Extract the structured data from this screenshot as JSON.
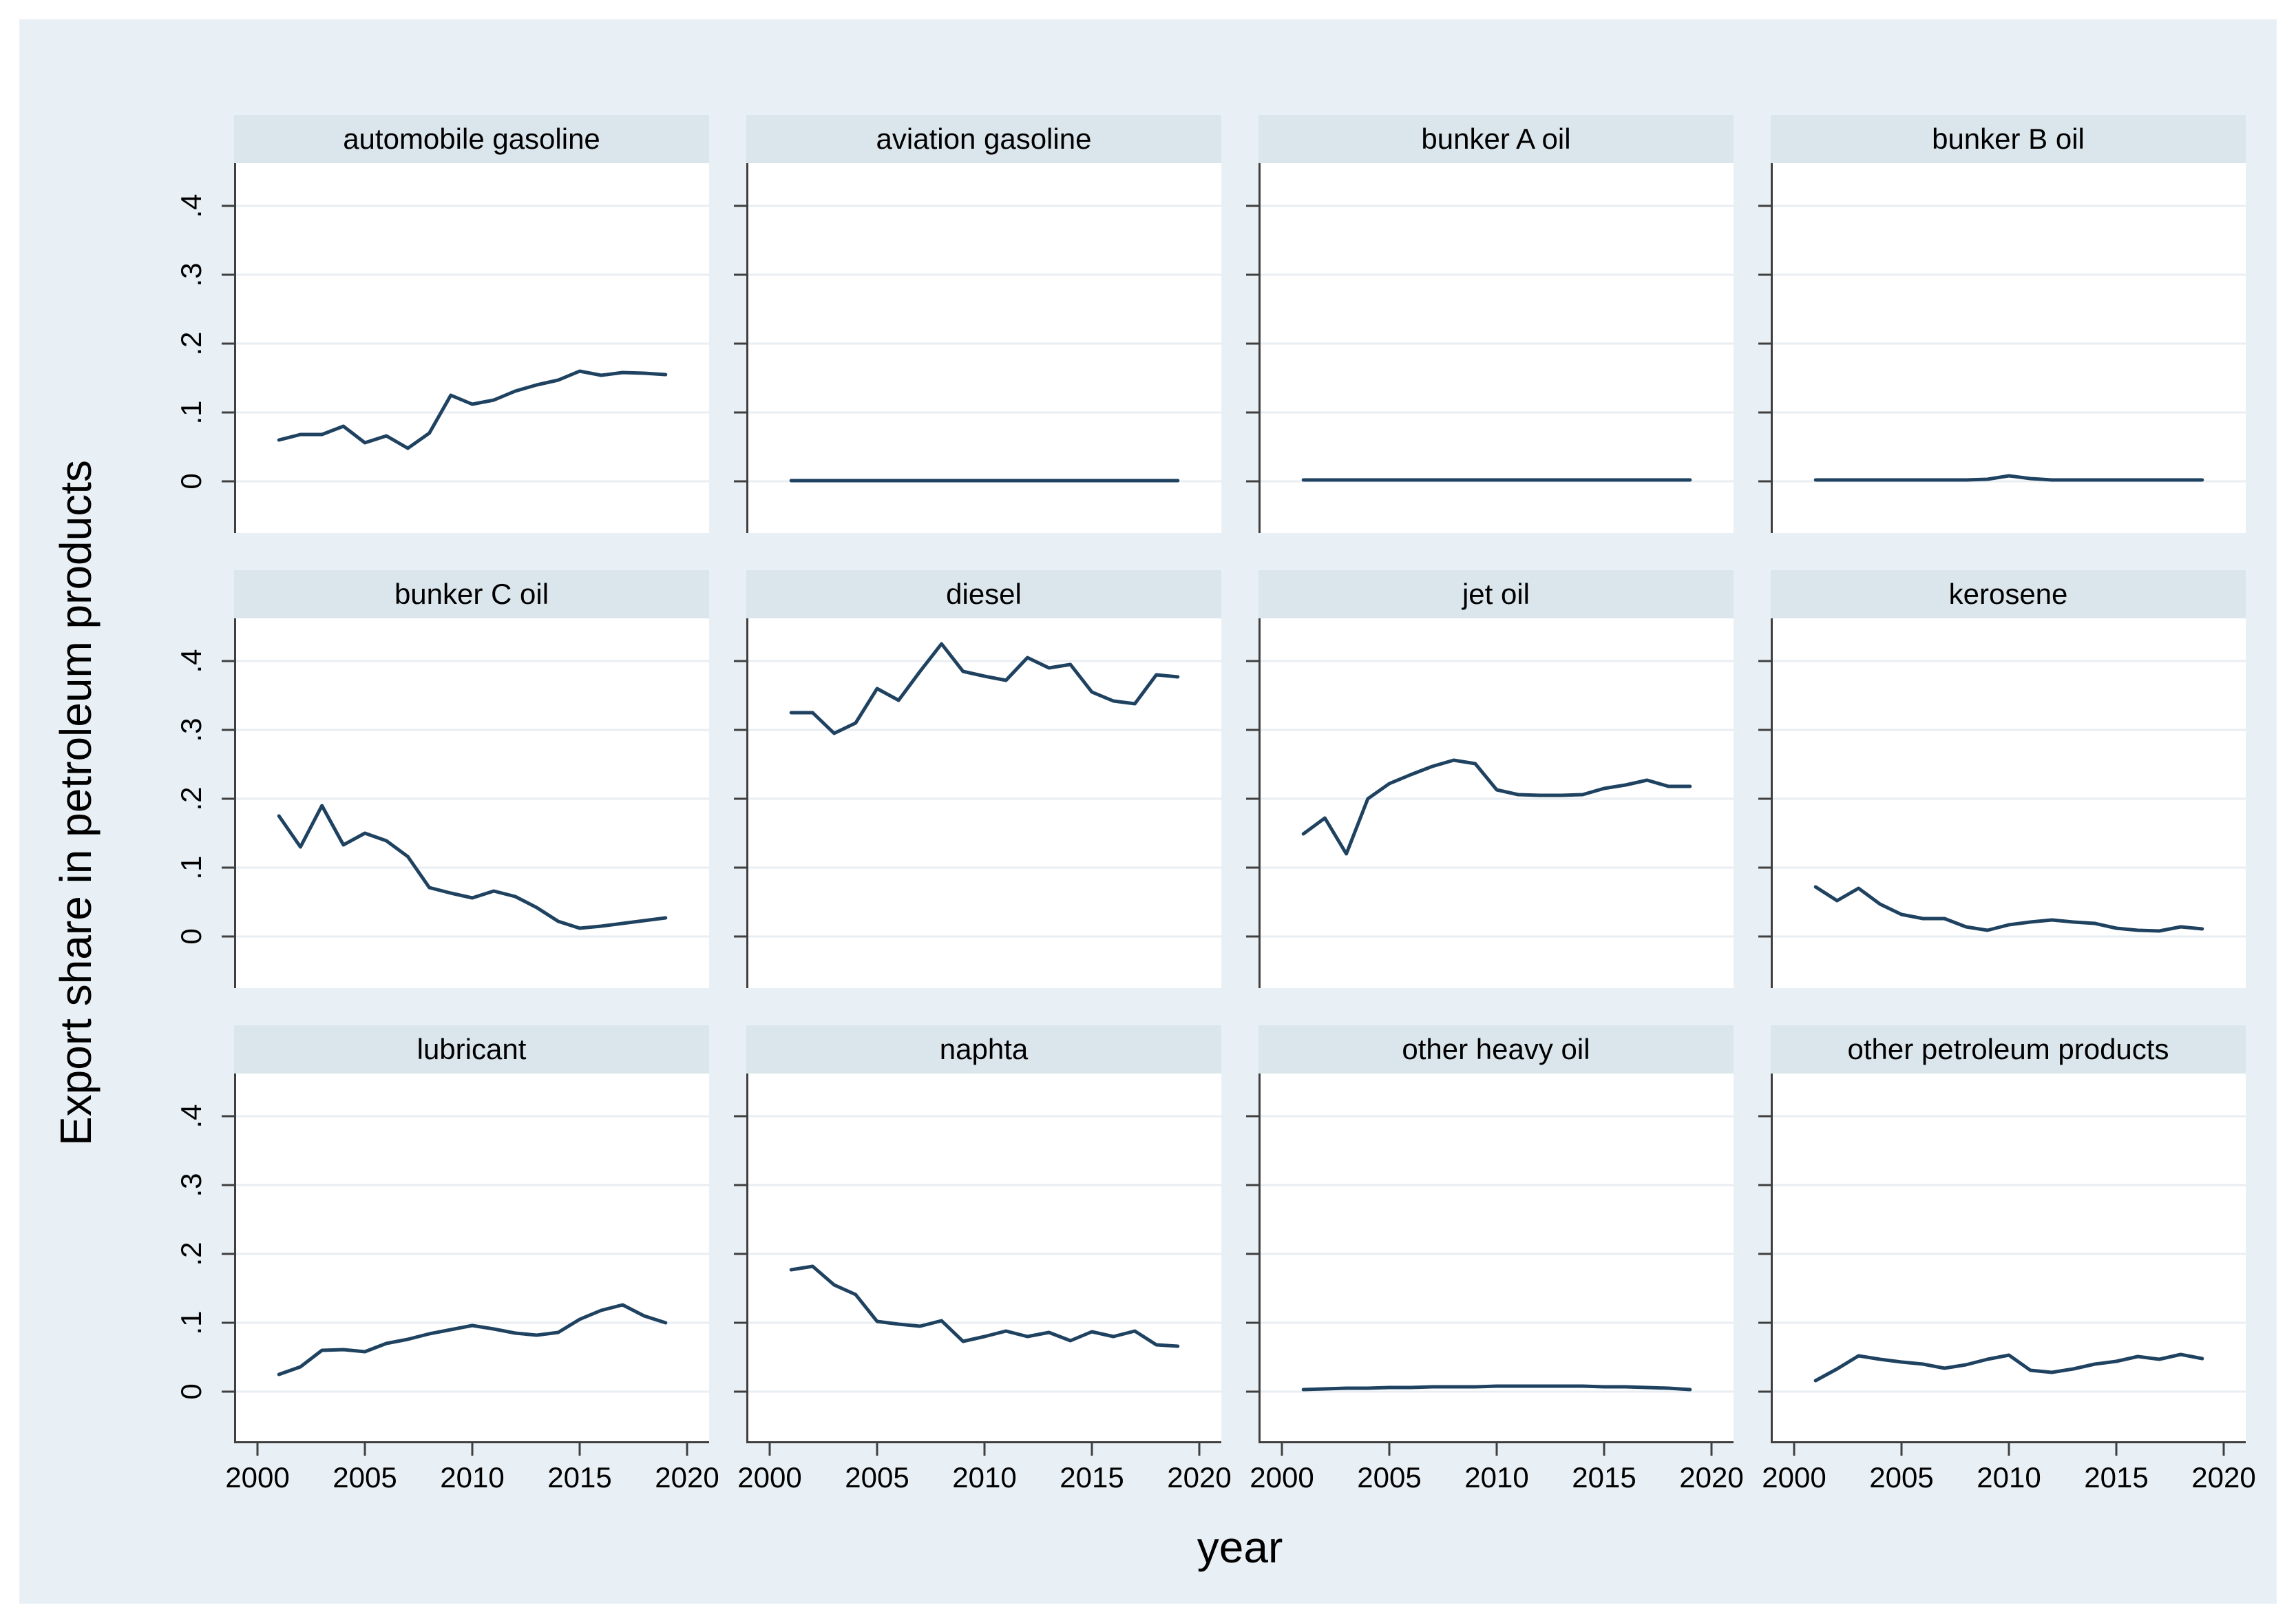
{
  "figure": {
    "ylabel": "Export share in petroleum products",
    "xlabel": "year",
    "colors": {
      "page_border": "#ffffff",
      "canvas": "#e9f0f5",
      "titlebar": "#dbe5ec",
      "plot_background": "#ffffff",
      "gridline": "#e9eef3",
      "line": "#1f4260",
      "spine": "#3f3f3f",
      "text": "#000000"
    }
  },
  "chart_data": {
    "type": "line",
    "layout": "small-multiples 3 rows x 4 cols",
    "title": "",
    "xlabel": "year",
    "ylabel": "Export share in petroleum products",
    "grid": true,
    "legend": "none",
    "xlim": [
      2000,
      2020
    ],
    "ylim": [
      -0.033,
      0.47
    ],
    "x_ticks": [
      2000,
      2005,
      2010,
      2015,
      2020
    ],
    "y_tick_values": [
      0,
      0.1,
      0.2,
      0.3,
      0.4
    ],
    "y_tick_labels": [
      "0",
      ".1",
      ".2",
      ".3",
      ".4"
    ],
    "x": [
      2001,
      2002,
      2003,
      2004,
      2005,
      2006,
      2007,
      2008,
      2009,
      2010,
      2011,
      2012,
      2013,
      2014,
      2015,
      2016,
      2017,
      2018,
      2019
    ],
    "panels": [
      {
        "title": "automobile gasoline",
        "values": [
          0.06,
          0.068,
          0.068,
          0.08,
          0.056,
          0.066,
          0.048,
          0.07,
          0.125,
          0.112,
          0.118,
          0.131,
          0.14,
          0.147,
          0.16,
          0.154,
          0.158,
          0.157,
          0.155
        ]
      },
      {
        "title": "aviation gasoline",
        "values": [
          0.001,
          0.001,
          0.001,
          0.001,
          0.001,
          0.001,
          0.001,
          0.001,
          0.001,
          0.001,
          0.001,
          0.001,
          0.001,
          0.001,
          0.001,
          0.001,
          0.001,
          0.001,
          0.001
        ]
      },
      {
        "title": "bunker A oil",
        "values": [
          0.002,
          0.002,
          0.002,
          0.002,
          0.002,
          0.002,
          0.002,
          0.002,
          0.002,
          0.002,
          0.002,
          0.002,
          0.002,
          0.002,
          0.002,
          0.002,
          0.002,
          0.002,
          0.002
        ]
      },
      {
        "title": "bunker B oil",
        "values": [
          0.002,
          0.002,
          0.002,
          0.002,
          0.002,
          0.002,
          0.002,
          0.002,
          0.003,
          0.008,
          0.004,
          0.002,
          0.002,
          0.002,
          0.002,
          0.002,
          0.002,
          0.002,
          0.002
        ]
      },
      {
        "title": "bunker C oil",
        "values": [
          0.175,
          0.13,
          0.19,
          0.133,
          0.15,
          0.139,
          0.116,
          0.071,
          0.063,
          0.056,
          0.066,
          0.058,
          0.042,
          0.022,
          0.012,
          0.015,
          0.019,
          0.023,
          0.027
        ]
      },
      {
        "title": "diesel",
        "values": [
          0.325,
          0.325,
          0.295,
          0.31,
          0.36,
          0.343,
          0.385,
          0.425,
          0.385,
          0.378,
          0.372,
          0.405,
          0.39,
          0.395,
          0.355,
          0.342,
          0.338,
          0.38,
          0.377
        ]
      },
      {
        "title": "jet oil",
        "values": [
          0.149,
          0.172,
          0.12,
          0.2,
          0.222,
          0.235,
          0.247,
          0.256,
          0.251,
          0.213,
          0.206,
          0.205,
          0.205,
          0.206,
          0.215,
          0.22,
          0.227,
          0.218,
          0.218
        ]
      },
      {
        "title": "kerosene",
        "values": [
          0.072,
          0.052,
          0.07,
          0.047,
          0.032,
          0.026,
          0.026,
          0.014,
          0.009,
          0.017,
          0.021,
          0.024,
          0.021,
          0.019,
          0.012,
          0.009,
          0.008,
          0.014,
          0.011
        ]
      },
      {
        "title": "lubricant",
        "values": [
          0.025,
          0.036,
          0.06,
          0.061,
          0.058,
          0.07,
          0.076,
          0.084,
          0.09,
          0.096,
          0.091,
          0.085,
          0.082,
          0.086,
          0.105,
          0.118,
          0.126,
          0.11,
          0.1
        ]
      },
      {
        "title": "naphta",
        "values": [
          0.177,
          0.182,
          0.155,
          0.141,
          0.102,
          0.098,
          0.095,
          0.103,
          0.073,
          0.08,
          0.088,
          0.08,
          0.086,
          0.074,
          0.087,
          0.08,
          0.088,
          0.068,
          0.066
        ]
      },
      {
        "title": "other heavy oil",
        "values": [
          0.003,
          0.004,
          0.005,
          0.005,
          0.006,
          0.006,
          0.007,
          0.007,
          0.007,
          0.008,
          0.008,
          0.008,
          0.008,
          0.008,
          0.007,
          0.007,
          0.006,
          0.005,
          0.003
        ]
      },
      {
        "title": "other petroleum products",
        "values": [
          0.016,
          0.033,
          0.052,
          0.047,
          0.043,
          0.04,
          0.034,
          0.039,
          0.047,
          0.053,
          0.031,
          0.028,
          0.033,
          0.04,
          0.044,
          0.051,
          0.047,
          0.054,
          0.048
        ]
      }
    ]
  }
}
